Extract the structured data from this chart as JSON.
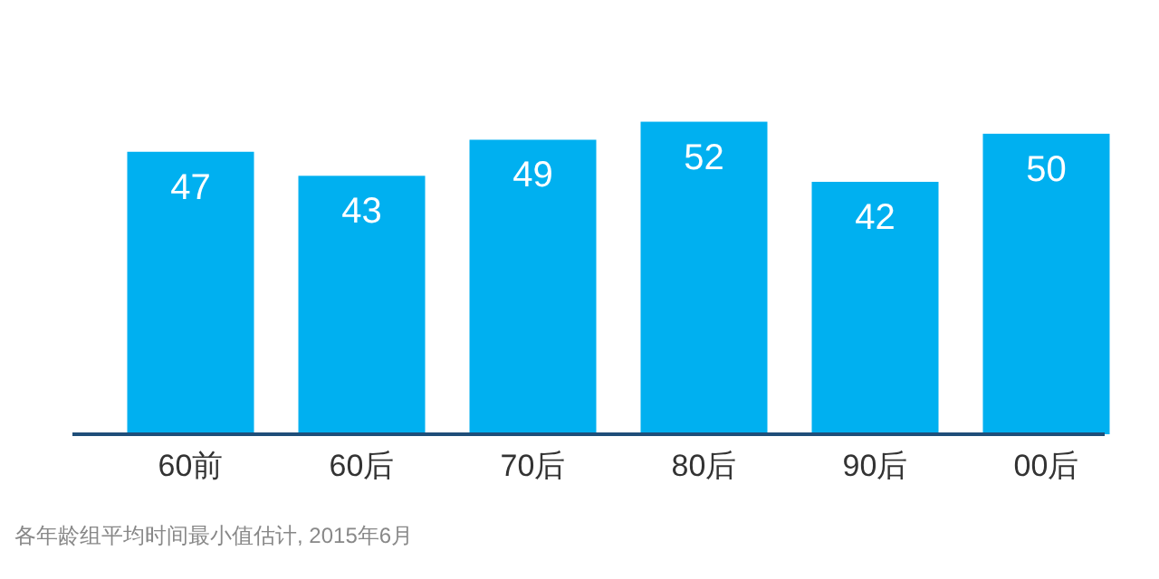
{
  "chart_data": {
    "type": "bar",
    "categories": [
      "60前",
      "60后",
      "70后",
      "80后",
      "90后",
      "00后"
    ],
    "values": [
      47,
      43,
      49,
      52,
      42,
      50
    ],
    "color": "#00b0f0",
    "data_labels": true,
    "annotations": [
      "各年龄组平均时间最小值估计, 2015年6月"
    ]
  }
}
